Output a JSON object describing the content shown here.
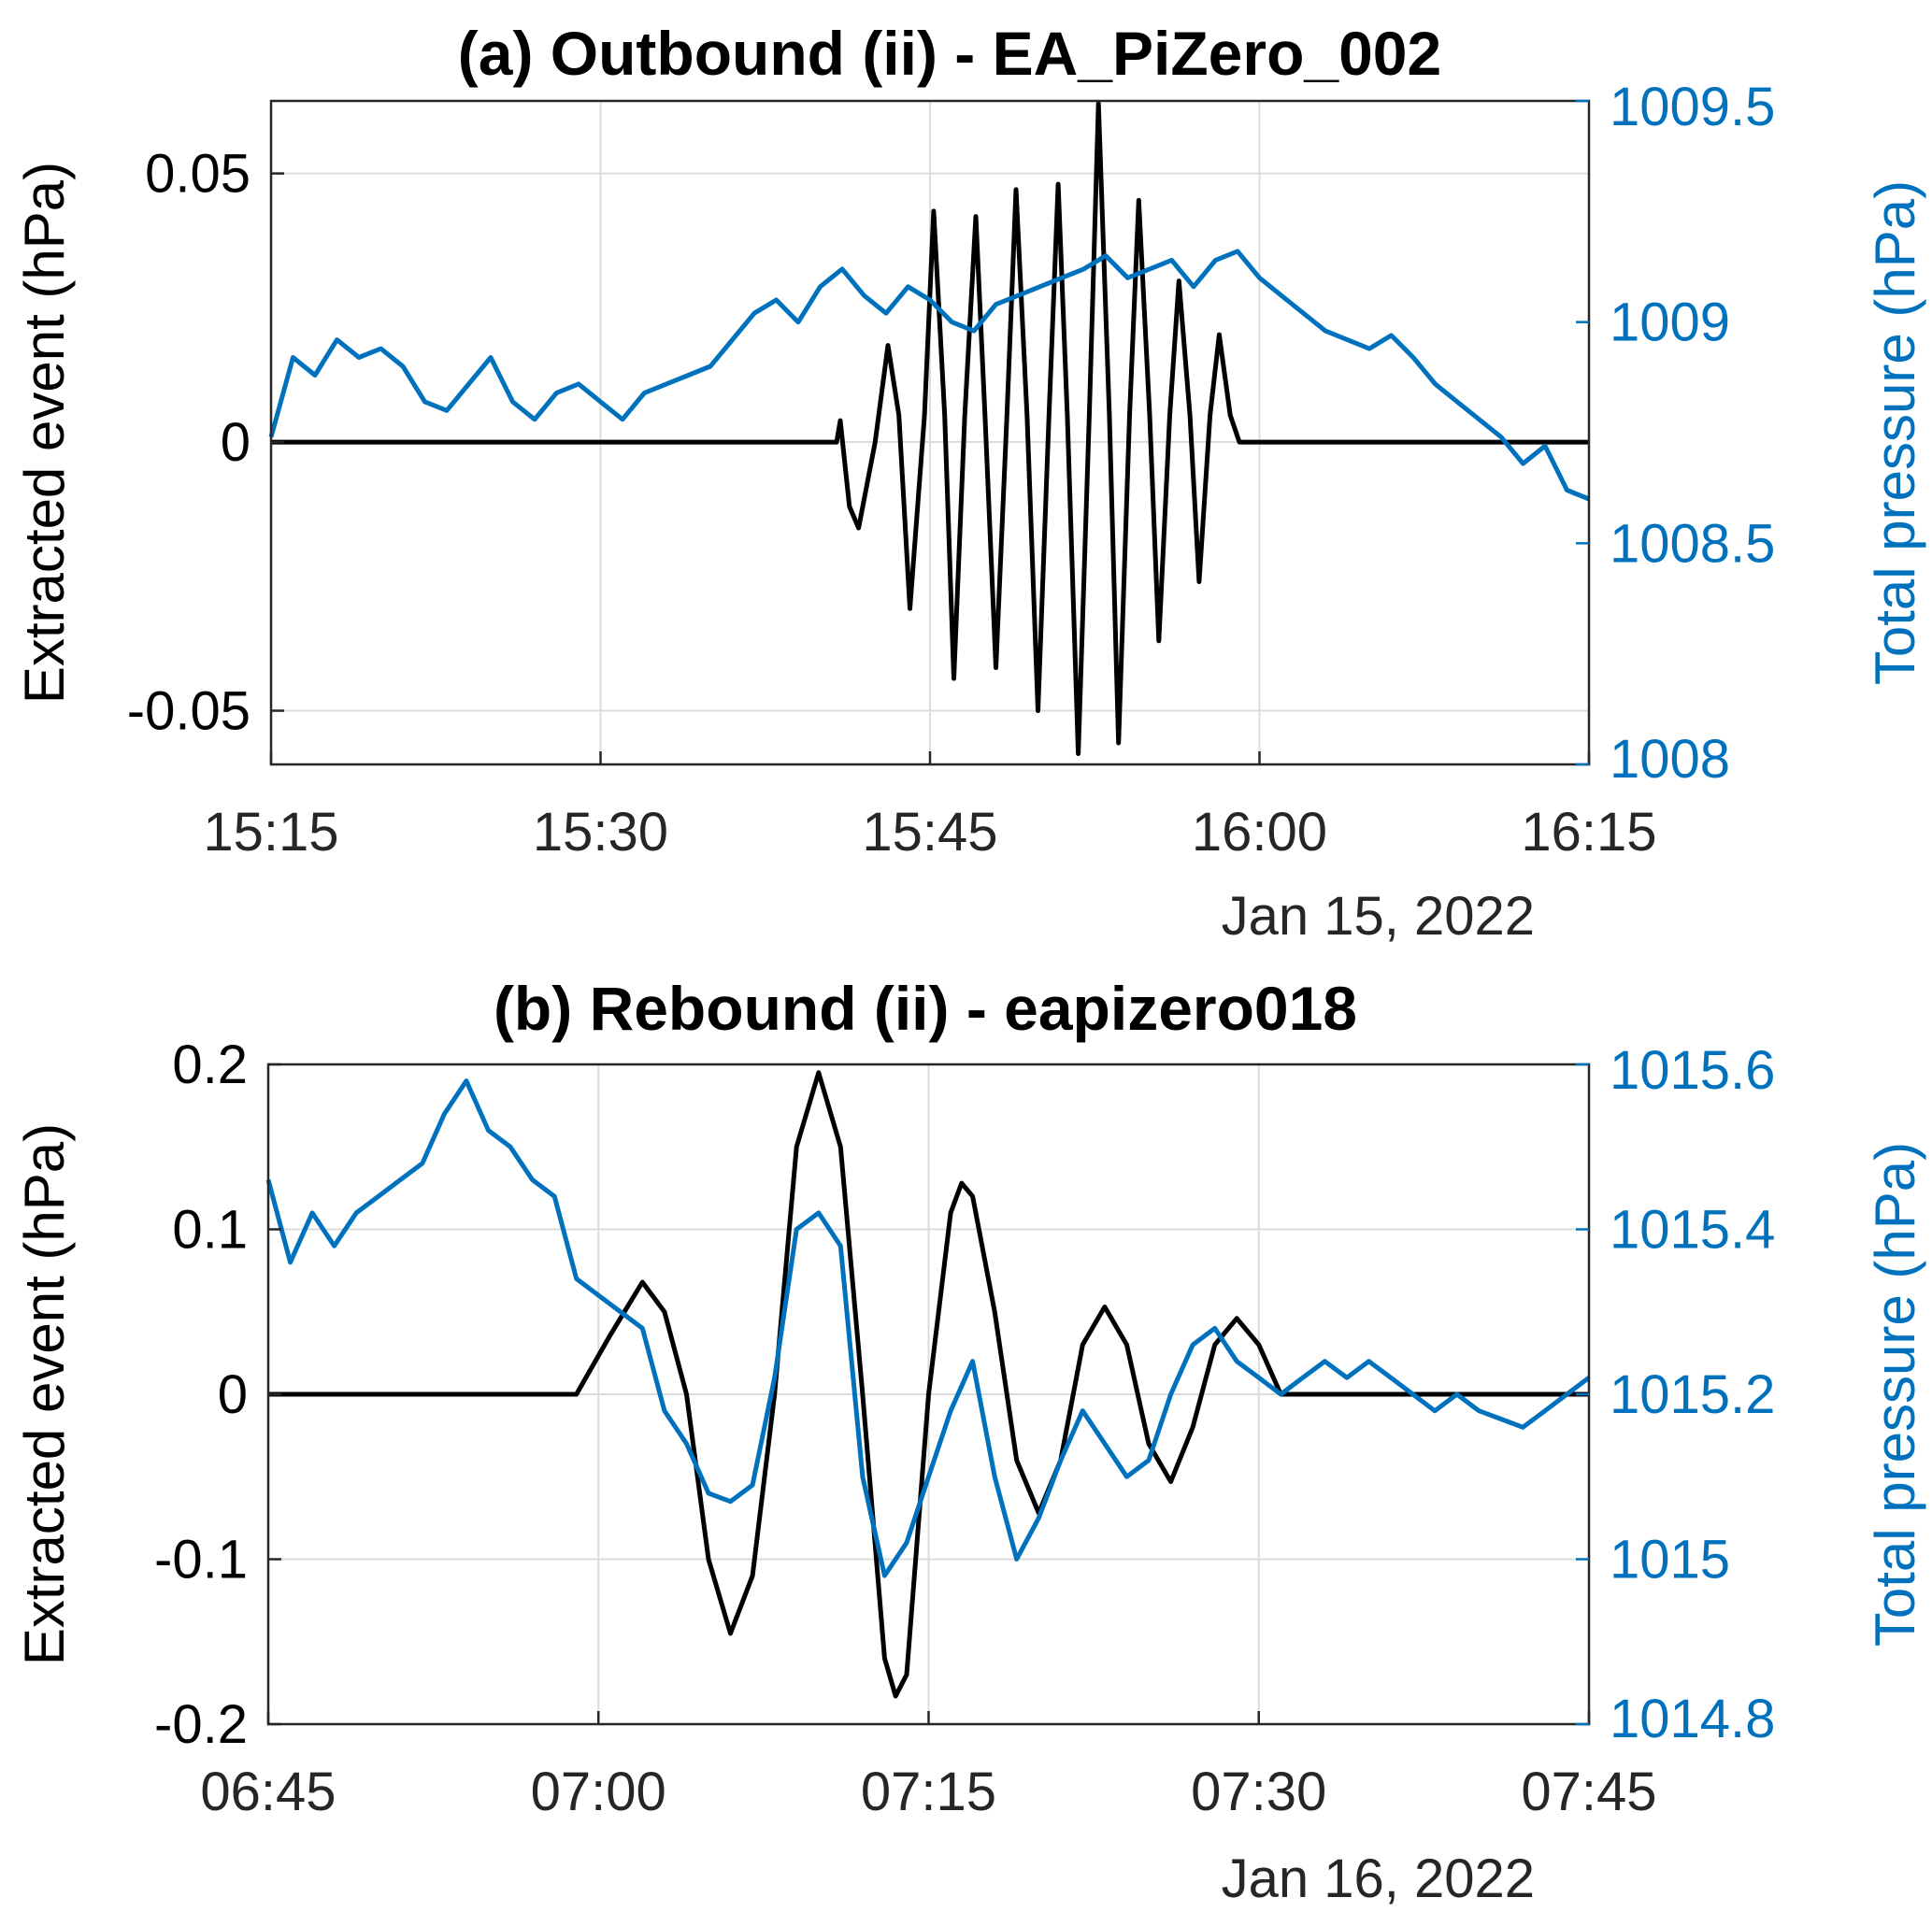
{
  "colors": {
    "extracted": "#000000",
    "total": "#0072BD",
    "grid": "#dcdcdc",
    "axis": "#262626"
  },
  "chart_data": [
    {
      "type": "line",
      "title": "(a) Outbound (ii) - EA_PiZero_002",
      "ylabel_left": "Extracted event (hPa)",
      "ylabel_right": "Total pressure (hPa)",
      "date_label": "Jan 15, 2022",
      "x_tick_labels": [
        "15:15",
        "15:30",
        "15:45",
        "16:00",
        "16:15"
      ],
      "xlim": [
        "15:15",
        "16:15"
      ],
      "ylim_left": [
        -0.06,
        0.0635
      ],
      "yticks_left": [
        -0.05,
        0,
        0.05
      ],
      "ytick_labels_left": [
        "-0.05",
        "0",
        "0.05"
      ],
      "ylim_right": [
        1008,
        1009.5
      ],
      "yticks_right": [
        1008,
        1008.5,
        1009,
        1009.5
      ],
      "ytick_labels_right": [
        "1008",
        "1008.5",
        "1009",
        "1009.5"
      ],
      "grid": true,
      "series": [
        {
          "axis": "left",
          "color": "#000000",
          "points": [
            [
              "15:15:00",
              0
            ],
            [
              "15:40:45",
              0
            ],
            [
              "15:40:55",
              0.004
            ],
            [
              "15:41:20",
              -0.012
            ],
            [
              "15:41:45",
              -0.016
            ],
            [
              "15:42:30",
              0
            ],
            [
              "15:43:05",
              0.018
            ],
            [
              "15:43:35",
              0.005
            ],
            [
              "15:44:05",
              -0.031
            ],
            [
              "15:44:45",
              0.005
            ],
            [
              "15:45:10",
              0.043
            ],
            [
              "15:45:40",
              0.005
            ],
            [
              "15:46:05",
              -0.044
            ],
            [
              "15:46:35",
              0.005
            ],
            [
              "15:47:05",
              0.042
            ],
            [
              "15:47:30",
              0.005
            ],
            [
              "15:48:00",
              -0.042
            ],
            [
              "15:48:30",
              0.005
            ],
            [
              "15:48:55",
              0.047
            ],
            [
              "15:49:25",
              0.005
            ],
            [
              "15:49:55",
              -0.05
            ],
            [
              "15:50:25",
              0.005
            ],
            [
              "15:50:50",
              0.048
            ],
            [
              "15:51:15",
              0.005
            ],
            [
              "15:51:45",
              -0.058
            ],
            [
              "15:52:15",
              0.005
            ],
            [
              "15:52:40",
              0.063
            ],
            [
              "15:53:10",
              0.005
            ],
            [
              "15:53:35",
              -0.056
            ],
            [
              "15:54:05",
              0.005
            ],
            [
              "15:54:30",
              0.045
            ],
            [
              "15:55:00",
              0.005
            ],
            [
              "15:55:25",
              -0.037
            ],
            [
              "15:55:55",
              0.005
            ],
            [
              "15:56:20",
              0.03
            ],
            [
              "15:56:50",
              0.005
            ],
            [
              "15:57:15",
              -0.026
            ],
            [
              "15:57:45",
              0.005
            ],
            [
              "15:58:10",
              0.02
            ],
            [
              "15:58:40",
              0.005
            ],
            [
              "15:59:05",
              0
            ],
            [
              "16:15:00",
              0
            ]
          ]
        },
        {
          "axis": "right",
          "color": "#0072BD",
          "points": [
            [
              "15:15:00",
              1008.74
            ],
            [
              "15:16:00",
              1008.92
            ],
            [
              "15:17:00",
              1008.88
            ],
            [
              "15:18:00",
              1008.96
            ],
            [
              "15:19:00",
              1008.92
            ],
            [
              "15:20:00",
              1008.94
            ],
            [
              "15:21:00",
              1008.9
            ],
            [
              "15:22:00",
              1008.82
            ],
            [
              "15:23:00",
              1008.8
            ],
            [
              "15:24:00",
              1008.86
            ],
            [
              "15:25:00",
              1008.92
            ],
            [
              "15:26:00",
              1008.82
            ],
            [
              "15:27:00",
              1008.78
            ],
            [
              "15:28:00",
              1008.84
            ],
            [
              "15:29:00",
              1008.86
            ],
            [
              "15:30:00",
              1008.82
            ],
            [
              "15:31:00",
              1008.78
            ],
            [
              "15:32:00",
              1008.84
            ],
            [
              "15:33:00",
              1008.86
            ],
            [
              "15:34:00",
              1008.88
            ],
            [
              "15:35:00",
              1008.9
            ],
            [
              "15:36:00",
              1008.96
            ],
            [
              "15:37:00",
              1009.02
            ],
            [
              "15:38:00",
              1009.05
            ],
            [
              "15:39:00",
              1009.0
            ],
            [
              "15:40:00",
              1009.08
            ],
            [
              "15:41:00",
              1009.12
            ],
            [
              "15:42:00",
              1009.06
            ],
            [
              "15:43:00",
              1009.02
            ],
            [
              "15:44:00",
              1009.08
            ],
            [
              "15:45:00",
              1009.05
            ],
            [
              "15:46:00",
              1009.0
            ],
            [
              "15:47:00",
              1008.98
            ],
            [
              "15:48:00",
              1009.04
            ],
            [
              "15:49:00",
              1009.06
            ],
            [
              "15:50:00",
              1009.08
            ],
            [
              "15:51:00",
              1009.1
            ],
            [
              "15:52:00",
              1009.12
            ],
            [
              "15:53:00",
              1009.15
            ],
            [
              "15:54:00",
              1009.1
            ],
            [
              "15:55:00",
              1009.12
            ],
            [
              "15:56:00",
              1009.14
            ],
            [
              "15:57:00",
              1009.08
            ],
            [
              "15:58:00",
              1009.14
            ],
            [
              "15:59:00",
              1009.16
            ],
            [
              "16:00:00",
              1009.1
            ],
            [
              "16:01:00",
              1009.06
            ],
            [
              "16:02:00",
              1009.02
            ],
            [
              "16:03:00",
              1008.98
            ],
            [
              "16:04:00",
              1008.96
            ],
            [
              "16:05:00",
              1008.94
            ],
            [
              "16:06:00",
              1008.97
            ],
            [
              "16:07:00",
              1008.92
            ],
            [
              "16:08:00",
              1008.86
            ],
            [
              "16:09:00",
              1008.82
            ],
            [
              "16:10:00",
              1008.78
            ],
            [
              "16:11:00",
              1008.74
            ],
            [
              "16:12:00",
              1008.68
            ],
            [
              "16:13:00",
              1008.72
            ],
            [
              "16:14:00",
              1008.62
            ],
            [
              "16:15:00",
              1008.6
            ]
          ]
        }
      ]
    },
    {
      "type": "line",
      "title": "(b) Rebound (ii) - eapizero018",
      "ylabel_left": "Extracted event (hPa)",
      "ylabel_right": "Total pressure (hPa)",
      "date_label": "Jan 16, 2022",
      "x_tick_labels": [
        "06:45",
        "07:00",
        "07:15",
        "07:30",
        "07:45"
      ],
      "xlim": [
        "06:45",
        "07:45"
      ],
      "ylim_left": [
        -0.2,
        0.2
      ],
      "yticks_left": [
        -0.2,
        -0.1,
        0,
        0.1,
        0.2
      ],
      "ytick_labels_left": [
        "-0.2",
        "-0.1",
        "0",
        "0.1",
        "0.2"
      ],
      "ylim_right": [
        1014.8,
        1015.6
      ],
      "yticks_right": [
        1014.8,
        1015,
        1015.2,
        1015.4,
        1015.6
      ],
      "ytick_labels_right": [
        "1014.8",
        "1015",
        "1015.2",
        "1015.4",
        "1015.6"
      ],
      "grid": true,
      "series": [
        {
          "axis": "left",
          "color": "#000000",
          "points": [
            [
              "06:45:00",
              0
            ],
            [
              "06:59:00",
              0
            ],
            [
              "07:00:30",
              0.035
            ],
            [
              "07:02:00",
              0.068
            ],
            [
              "07:03:00",
              0.05
            ],
            [
              "07:04:00",
              0
            ],
            [
              "07:05:00",
              -0.1
            ],
            [
              "07:06:00",
              -0.145
            ],
            [
              "07:07:00",
              -0.11
            ],
            [
              "07:08:00",
              0
            ],
            [
              "07:09:00",
              0.15
            ],
            [
              "07:10:00",
              0.195
            ],
            [
              "07:11:00",
              0.15
            ],
            [
              "07:12:00",
              0
            ],
            [
              "07:13:00",
              -0.16
            ],
            [
              "07:13:30",
              -0.183
            ],
            [
              "07:14:00",
              -0.17
            ],
            [
              "07:15:00",
              0
            ],
            [
              "07:16:00",
              0.11
            ],
            [
              "07:16:30",
              0.128
            ],
            [
              "07:17:00",
              0.12
            ],
            [
              "07:18:00",
              0.05
            ],
            [
              "07:19:00",
              -0.04
            ],
            [
              "07:20:00",
              -0.072
            ],
            [
              "07:21:00",
              -0.04
            ],
            [
              "07:22:00",
              0.03
            ],
            [
              "07:23:00",
              0.053
            ],
            [
              "07:24:00",
              0.03
            ],
            [
              "07:25:00",
              -0.03
            ],
            [
              "07:26:00",
              -0.053
            ],
            [
              "07:27:00",
              -0.02
            ],
            [
              "07:28:00",
              0.03
            ],
            [
              "07:29:00",
              0.046
            ],
            [
              "07:30:00",
              0.03
            ],
            [
              "07:31:00",
              0
            ],
            [
              "07:45:00",
              0
            ]
          ]
        },
        {
          "axis": "right",
          "color": "#0072BD",
          "points": [
            [
              "06:45:00",
              1015.46
            ],
            [
              "06:46:00",
              1015.36
            ],
            [
              "06:47:00",
              1015.42
            ],
            [
              "06:48:00",
              1015.38
            ],
            [
              "06:49:00",
              1015.42
            ],
            [
              "06:50:00",
              1015.44
            ],
            [
              "06:51:00",
              1015.46
            ],
            [
              "06:52:00",
              1015.48
            ],
            [
              "06:53:00",
              1015.54
            ],
            [
              "06:54:00",
              1015.58
            ],
            [
              "06:55:00",
              1015.52
            ],
            [
              "06:56:00",
              1015.5
            ],
            [
              "06:57:00",
              1015.46
            ],
            [
              "06:58:00",
              1015.44
            ],
            [
              "06:59:00",
              1015.34
            ],
            [
              "07:00:00",
              1015.32
            ],
            [
              "07:01:00",
              1015.3
            ],
            [
              "07:02:00",
              1015.28
            ],
            [
              "07:03:00",
              1015.18
            ],
            [
              "07:04:00",
              1015.14
            ],
            [
              "07:05:00",
              1015.08
            ],
            [
              "07:06:00",
              1015.07
            ],
            [
              "07:07:00",
              1015.09
            ],
            [
              "07:08:00",
              1015.22
            ],
            [
              "07:09:00",
              1015.4
            ],
            [
              "07:10:00",
              1015.42
            ],
            [
              "07:11:00",
              1015.38
            ],
            [
              "07:12:00",
              1015.1
            ],
            [
              "07:13:00",
              1014.98
            ],
            [
              "07:14:00",
              1015.02
            ],
            [
              "07:15:00",
              1015.1
            ],
            [
              "07:16:00",
              1015.18
            ],
            [
              "07:17:00",
              1015.24
            ],
            [
              "07:18:00",
              1015.1
            ],
            [
              "07:19:00",
              1015.0
            ],
            [
              "07:20:00",
              1015.05
            ],
            [
              "07:21:00",
              1015.12
            ],
            [
              "07:22:00",
              1015.18
            ],
            [
              "07:23:00",
              1015.14
            ],
            [
              "07:24:00",
              1015.1
            ],
            [
              "07:25:00",
              1015.12
            ],
            [
              "07:26:00",
              1015.2
            ],
            [
              "07:27:00",
              1015.26
            ],
            [
              "07:28:00",
              1015.28
            ],
            [
              "07:29:00",
              1015.24
            ],
            [
              "07:30:00",
              1015.22
            ],
            [
              "07:31:00",
              1015.2
            ],
            [
              "07:32:00",
              1015.22
            ],
            [
              "07:33:00",
              1015.24
            ],
            [
              "07:34:00",
              1015.22
            ],
            [
              "07:35:00",
              1015.24
            ],
            [
              "07:36:00",
              1015.22
            ],
            [
              "07:37:00",
              1015.2
            ],
            [
              "07:38:00",
              1015.18
            ],
            [
              "07:39:00",
              1015.2
            ],
            [
              "07:40:00",
              1015.18
            ],
            [
              "07:41:00",
              1015.17
            ],
            [
              "07:42:00",
              1015.16
            ],
            [
              "07:43:00",
              1015.18
            ],
            [
              "07:44:00",
              1015.2
            ],
            [
              "07:45:00",
              1015.22
            ]
          ]
        }
      ]
    }
  ]
}
